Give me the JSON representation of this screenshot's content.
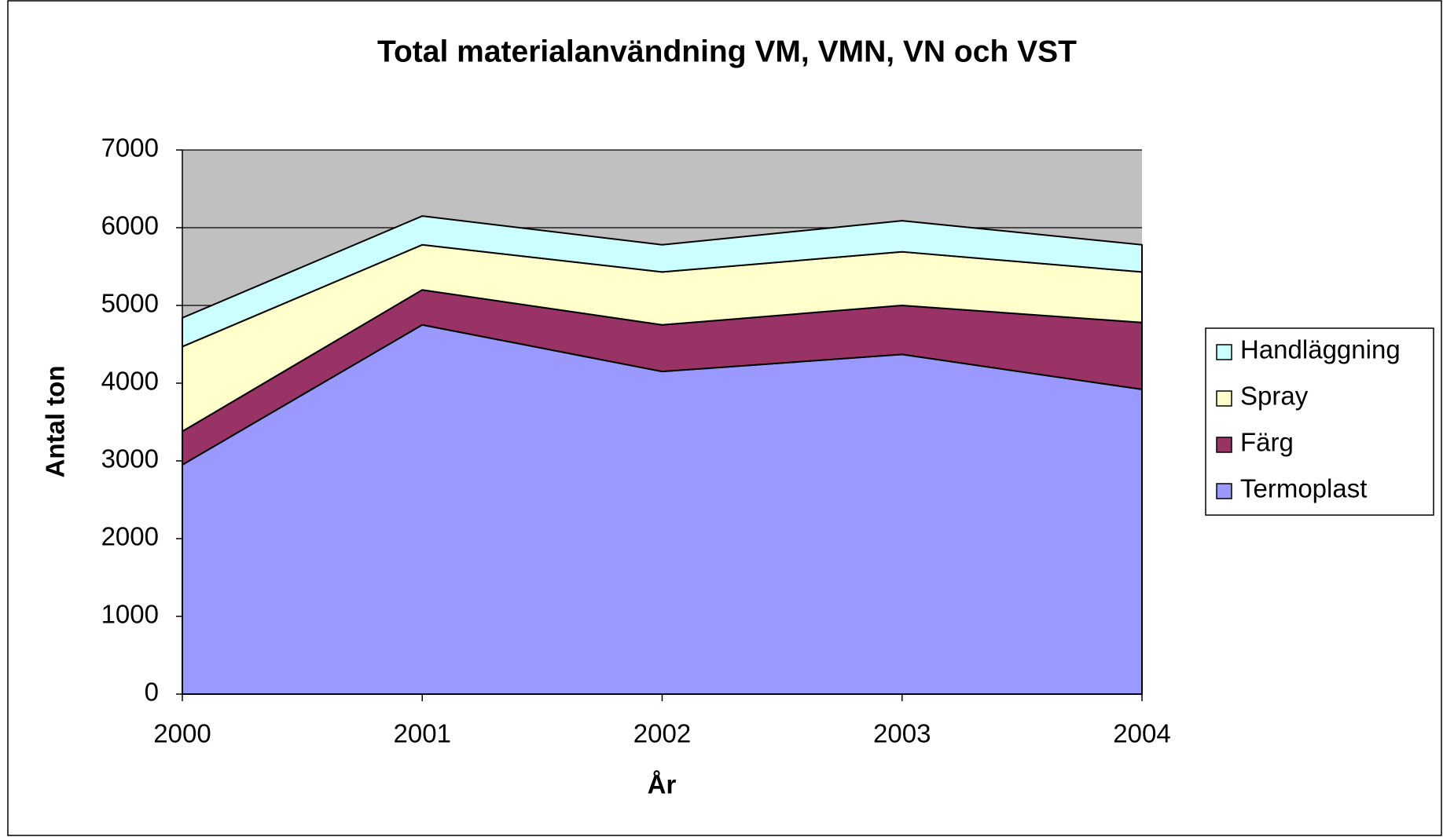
{
  "chart_data": {
    "type": "stacked_area",
    "title": "Total materialanvändning VM, VMN, VN och VST",
    "x_label": "År",
    "y_label": "Antal ton",
    "categories": [
      "2000",
      "2001",
      "2002",
      "2003",
      "2004"
    ],
    "series": [
      {
        "name": "Termoplast",
        "color": "#9999ff",
        "values": [
          2950,
          4750,
          4150,
          4370,
          3920
        ]
      },
      {
        "name": "Färg",
        "color": "#993366",
        "values": [
          430,
          450,
          600,
          630,
          860
        ]
      },
      {
        "name": "Spray",
        "color": "#ffffcc",
        "values": [
          1090,
          580,
          680,
          690,
          650
        ]
      },
      {
        "name": "Handläggning",
        "color": "#ccffff",
        "values": [
          370,
          370,
          350,
          400,
          350
        ]
      }
    ],
    "ylim": [
      0,
      7000
    ],
    "yticks": [
      0,
      1000,
      2000,
      3000,
      4000,
      5000,
      6000,
      7000
    ],
    "grid": true,
    "legend": "right",
    "plot_background": "#c0c0c0"
  }
}
